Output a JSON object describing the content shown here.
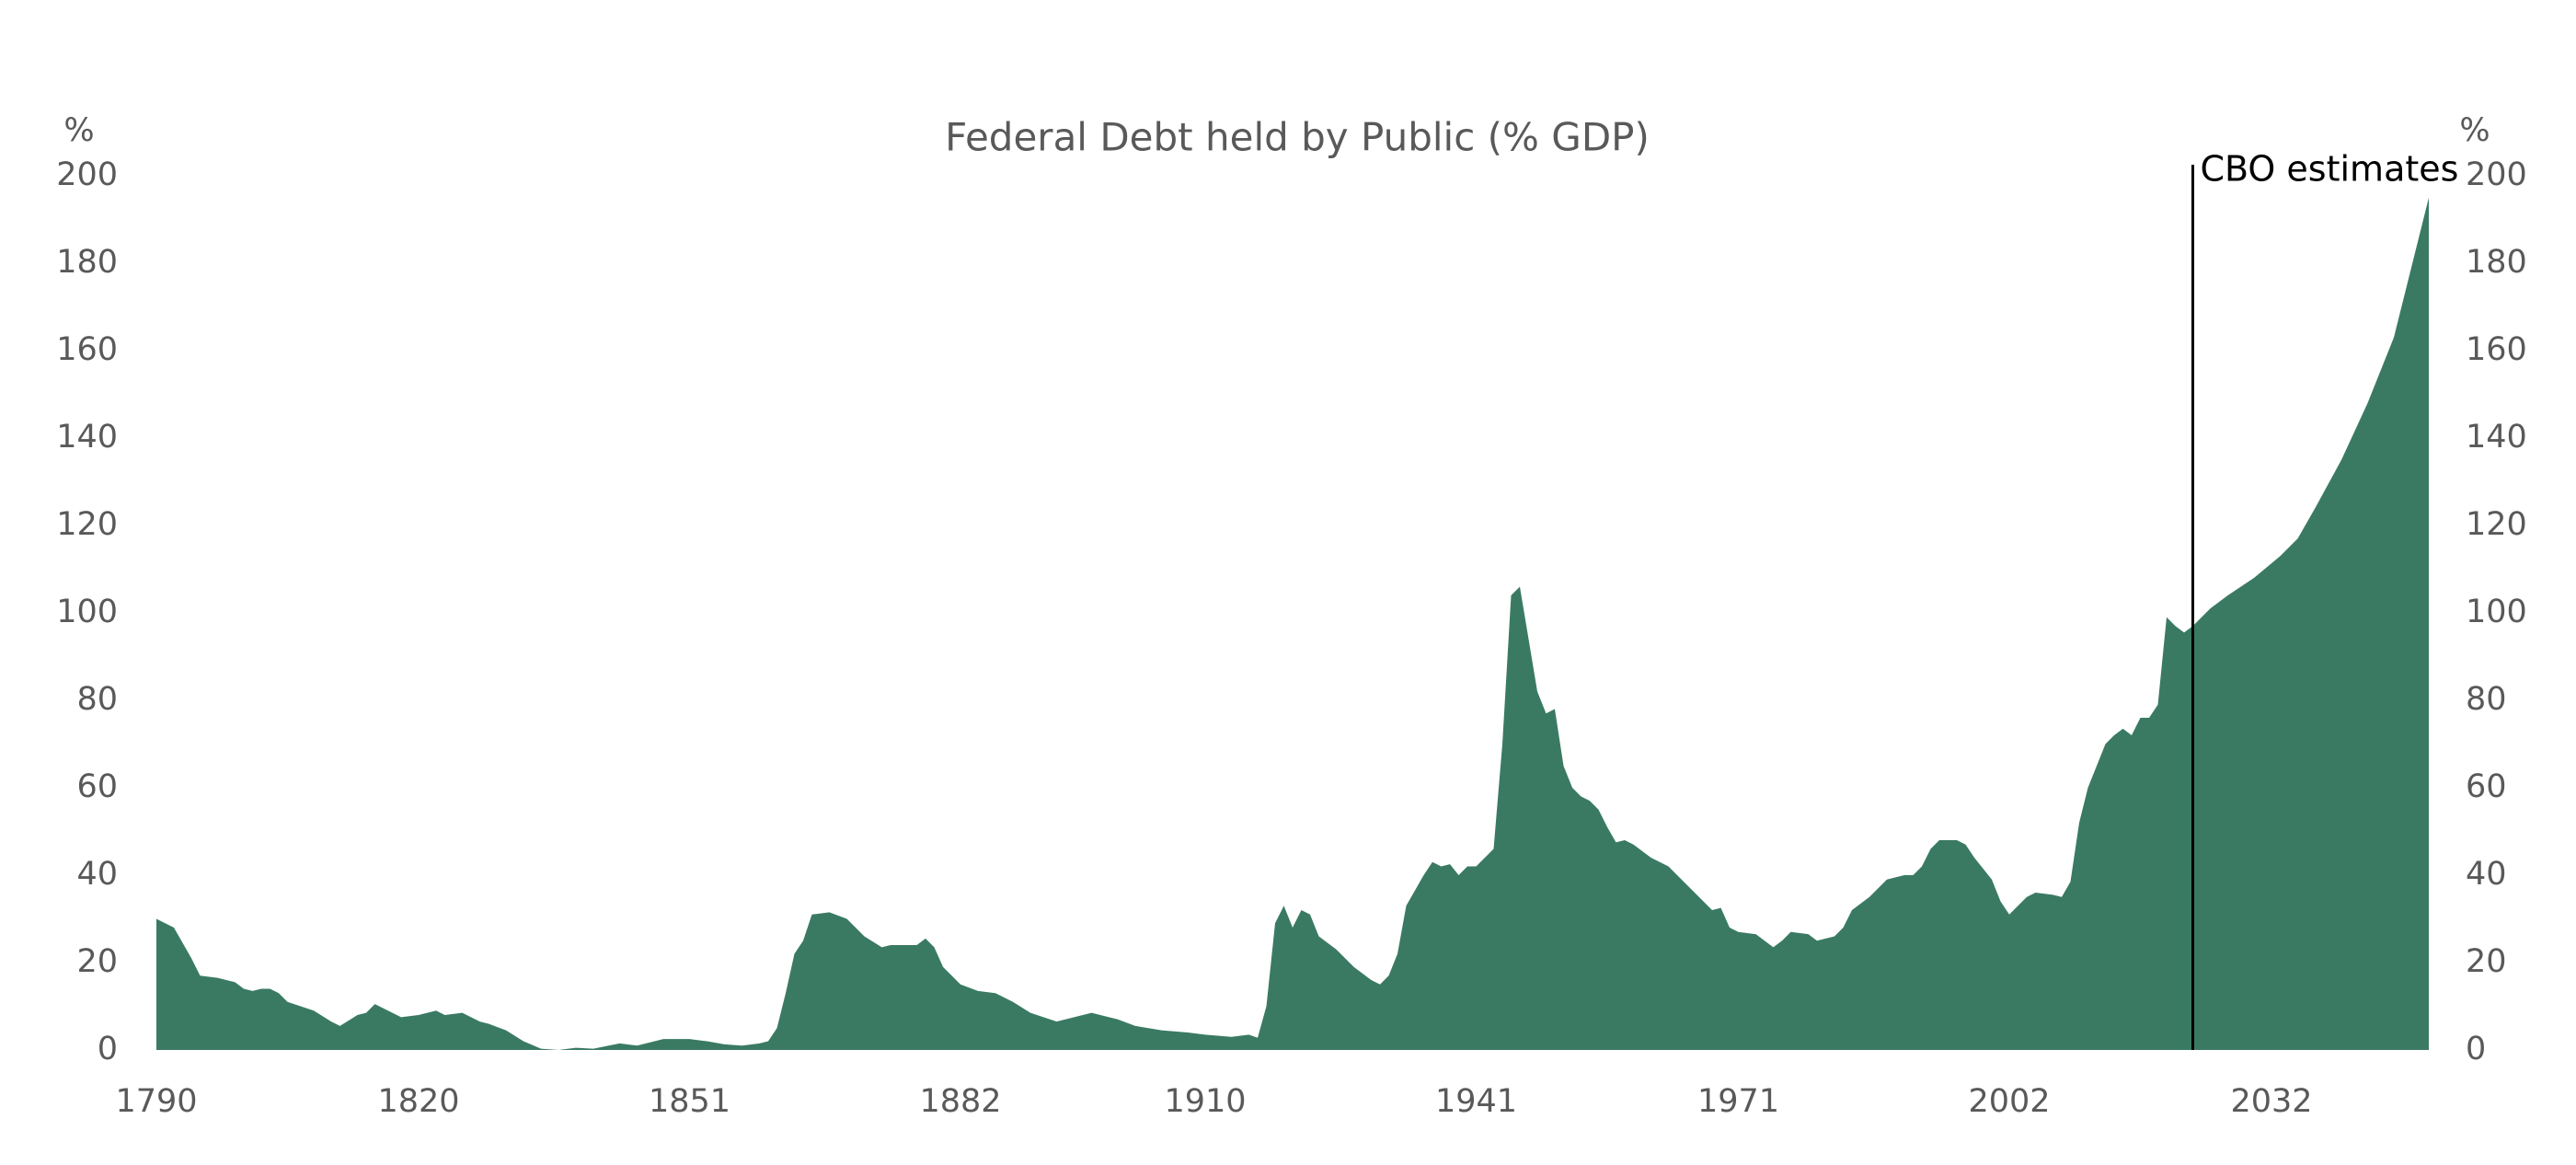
{
  "chart_data": {
    "type": "area",
    "title": "Federal Debt held by Public (% GDP)",
    "y_label": "%",
    "y2_label": "%",
    "x": [
      1790,
      1791,
      1792,
      1793,
      1794,
      1795,
      1797,
      1799,
      1800,
      1801,
      1802,
      1803,
      1804,
      1805,
      1808,
      1810,
      1811,
      1813,
      1814,
      1815,
      1816,
      1818,
      1820,
      1822,
      1823,
      1825,
      1827,
      1828,
      1830,
      1832,
      1834,
      1836,
      1838,
      1840,
      1843,
      1845,
      1848,
      1851,
      1853,
      1855,
      1857,
      1859,
      1860,
      1861,
      1862,
      1863,
      1864,
      1865,
      1867,
      1869,
      1871,
      1873,
      1874,
      1877,
      1878,
      1879,
      1880,
      1882,
      1884,
      1886,
      1888,
      1890,
      1893,
      1895,
      1897,
      1898,
      1900,
      1902,
      1905,
      1908,
      1910,
      1913,
      1915,
      1916,
      1917,
      1918,
      1919,
      1920,
      1921,
      1922,
      1923,
      1925,
      1927,
      1929,
      1930,
      1931,
      1932,
      1933,
      1935,
      1936,
      1937,
      1938,
      1939,
      1940,
      1941,
      1942,
      1943,
      1944,
      1945,
      1946,
      1947,
      1948,
      1949,
      1950,
      1951,
      1952,
      1953,
      1954,
      1955,
      1956,
      1957,
      1958,
      1959,
      1961,
      1963,
      1965,
      1967,
      1968,
      1969,
      1970,
      1971,
      1973,
      1974,
      1975,
      1976,
      1977,
      1979,
      1980,
      1982,
      1983,
      1984,
      1986,
      1988,
      1990,
      1991,
      1992,
      1993,
      1994,
      1996,
      1997,
      1998,
      2000,
      2001,
      2002,
      2003,
      2004,
      2005,
      2007,
      2008,
      2009,
      2010,
      2011,
      2012,
      2013,
      2014,
      2015,
      2016,
      2017,
      2018,
      2019,
      2020,
      2021,
      2022,
      2023,
      2025,
      2027,
      2030,
      2033,
      2035,
      2037,
      2040,
      2043,
      2046,
      2050
    ],
    "values": [
      30,
      29,
      28,
      24.5,
      21,
      17,
      16.5,
      15.5,
      14,
      13.5,
      14,
      14,
      13,
      11,
      9,
      6.5,
      5.5,
      8,
      8.5,
      10.5,
      9.5,
      7.5,
      8,
      9,
      8,
      8.5,
      6.5,
      6,
      4.5,
      2,
      0.3,
      0,
      0.5,
      0.3,
      1.5,
      1,
      2.5,
      2.5,
      2,
      1.3,
      1,
      1.5,
      2,
      5,
      13,
      22,
      25,
      31,
      31.5,
      30,
      26,
      23.5,
      24,
      24,
      25.5,
      23.5,
      19,
      15,
      13.5,
      13,
      11,
      8.5,
      6.5,
      7.5,
      8.5,
      8,
      7,
      5.5,
      4.5,
      4,
      3.5,
      3,
      3.5,
      2.8,
      10,
      29,
      33,
      28,
      32,
      31,
      26,
      23,
      19,
      16,
      15,
      17,
      22,
      33,
      40,
      43,
      42,
      42.5,
      40,
      42,
      42,
      44,
      46,
      70,
      104,
      106,
      94,
      82,
      77,
      78,
      65,
      60,
      58,
      57,
      55,
      51,
      47.5,
      48,
      47,
      44,
      42,
      38,
      34,
      32,
      32.5,
      28,
      27,
      26.5,
      25,
      23.5,
      25,
      27,
      26.5,
      25,
      26,
      28,
      32,
      35,
      39,
      40,
      40,
      42,
      46,
      48,
      48,
      47,
      44,
      39,
      34,
      31,
      33,
      35,
      36,
      35.5,
      35,
      38.5,
      52,
      60,
      65,
      70,
      72,
      73.5,
      72,
      76,
      76,
      79,
      99,
      97,
      95.5,
      97,
      101,
      104,
      108,
      113,
      117,
      124,
      135,
      148,
      163,
      195
    ],
    "color": "#3a7a63",
    "xlim": [
      1790,
      2050
    ],
    "xticks": [
      1790,
      1820,
      1851,
      1882,
      1910,
      1941,
      1971,
      2002,
      2032
    ],
    "ylim": [
      0,
      200
    ],
    "yticks": [
      0,
      20,
      40,
      60,
      80,
      100,
      120,
      140,
      160,
      180,
      200
    ],
    "y2lim": [
      0,
      200
    ],
    "y2ticks": [
      0,
      20,
      40,
      60,
      80,
      100,
      120,
      140,
      160,
      180,
      200
    ],
    "annotation": {
      "text": "CBO estimates",
      "x": 2023
    }
  }
}
